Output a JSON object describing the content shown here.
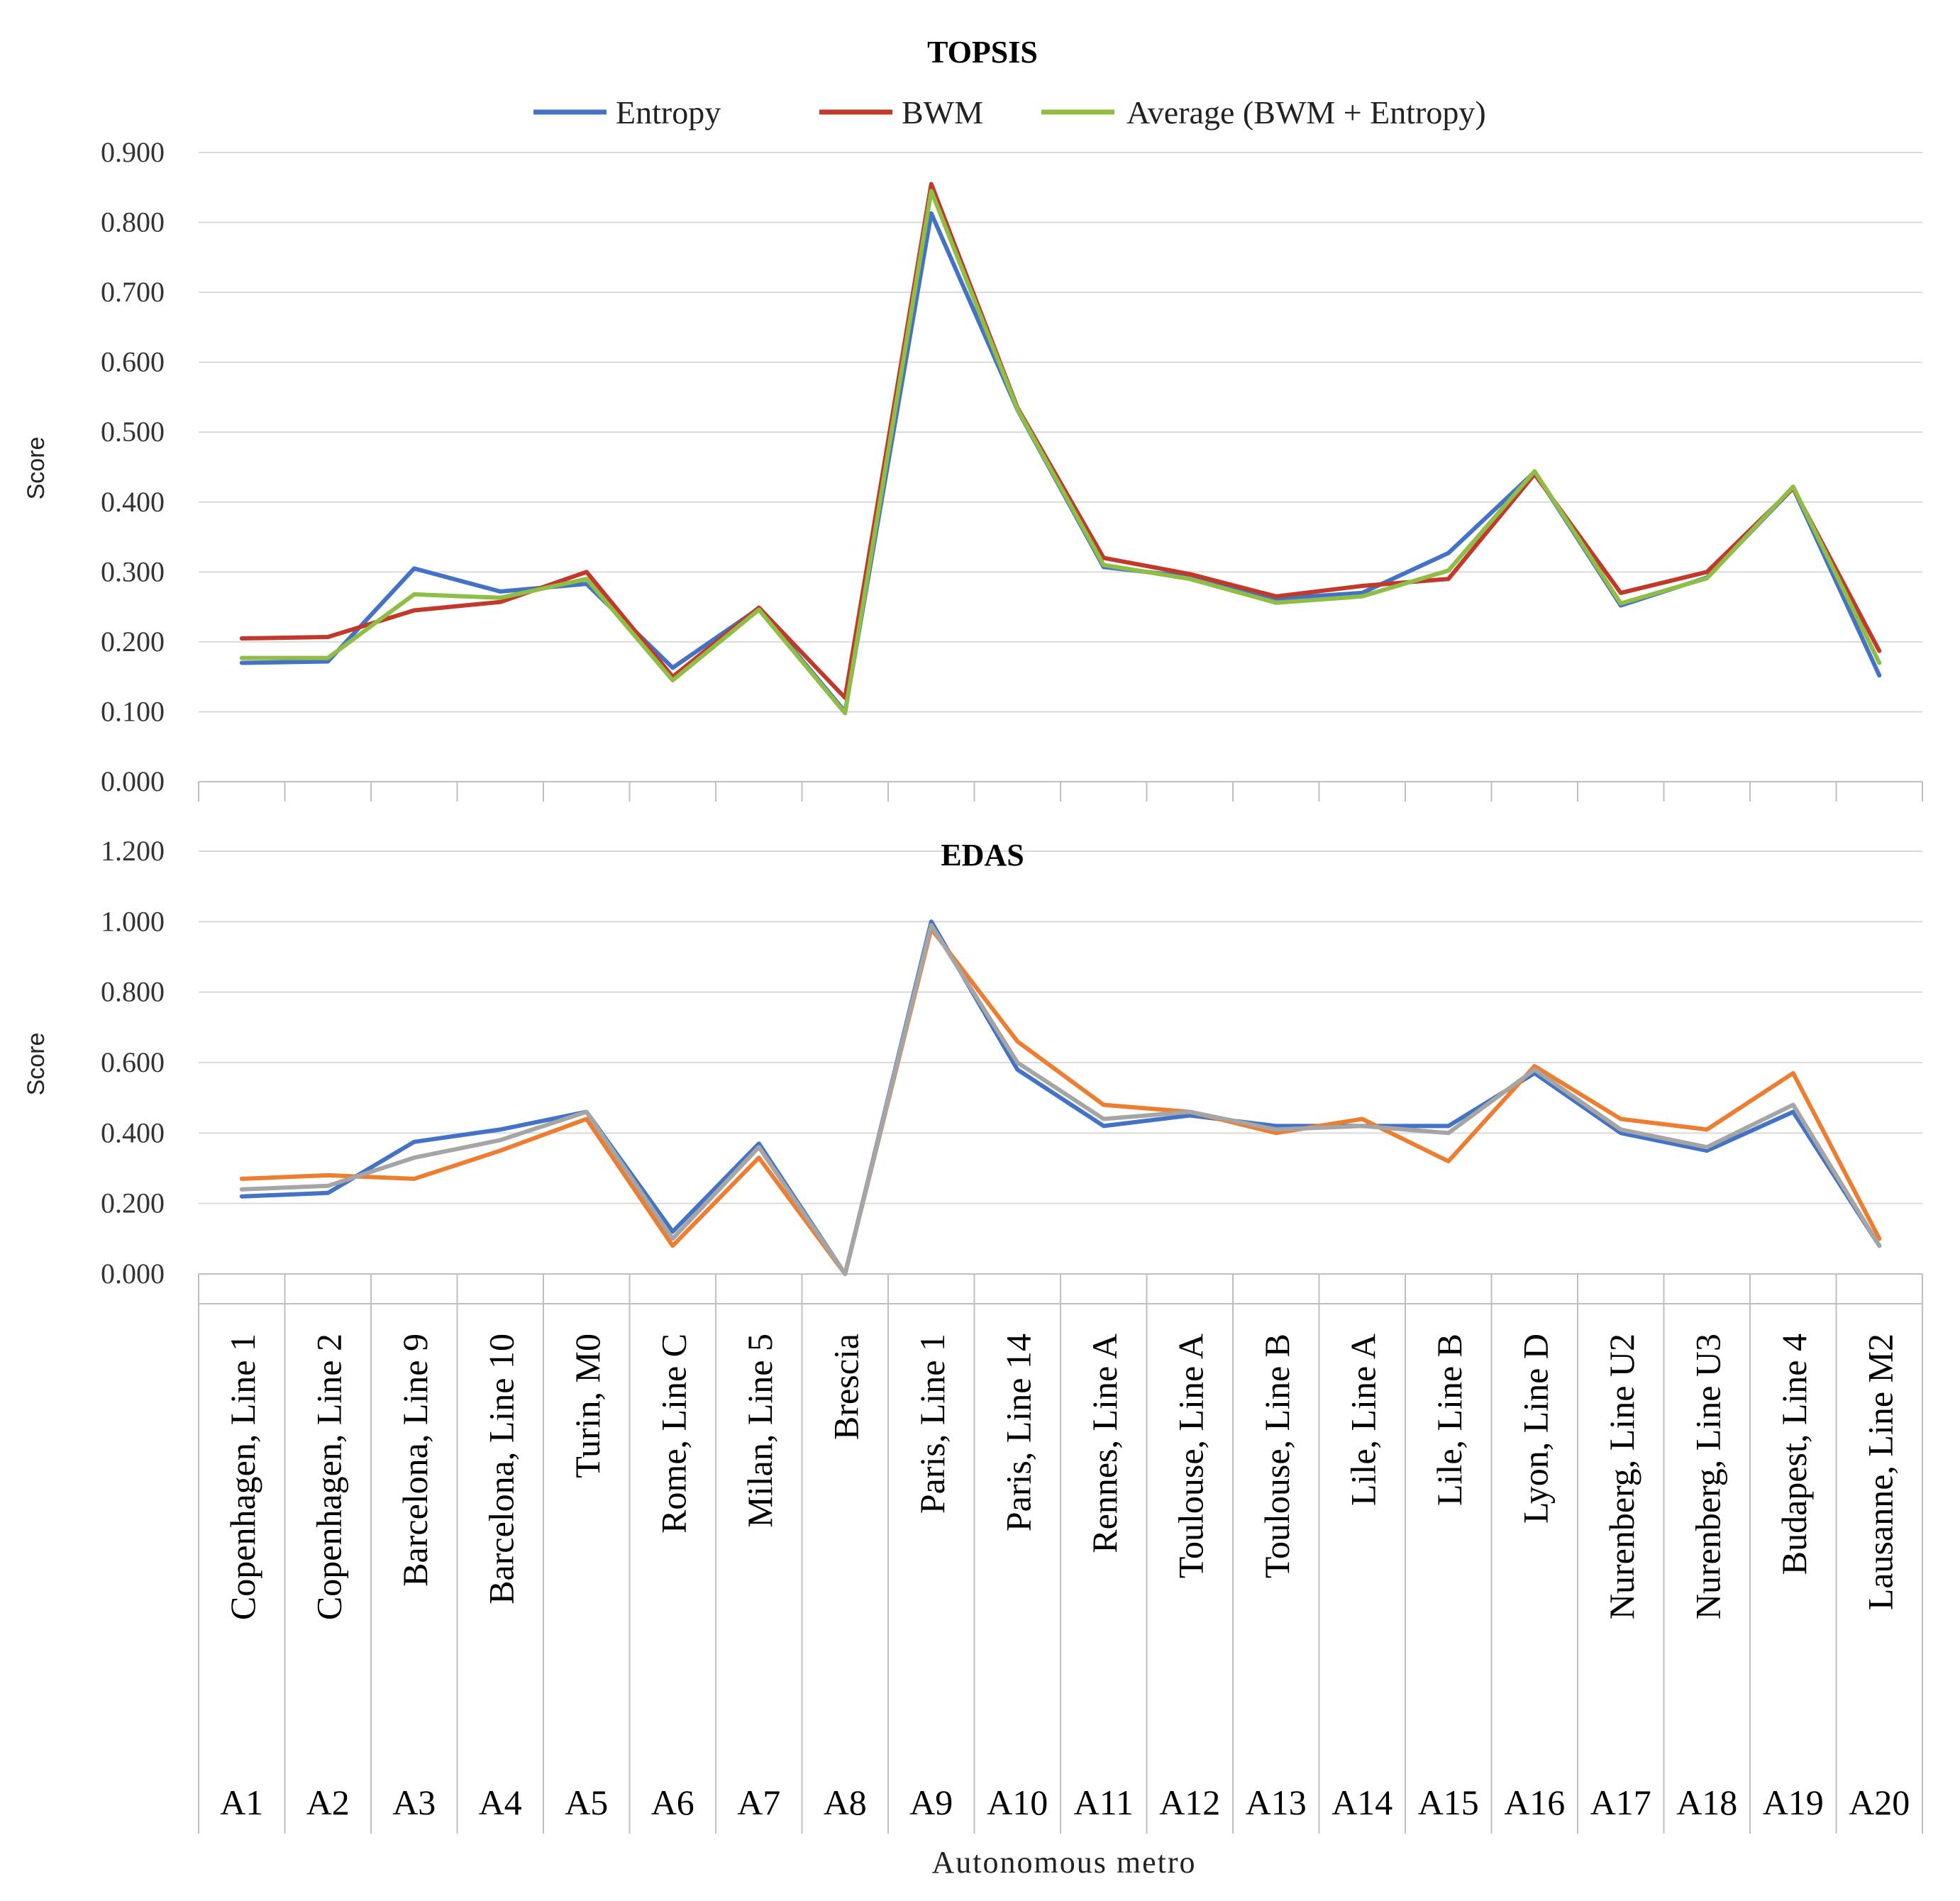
{
  "chart_data": [
    {
      "type": "line",
      "title": "TOPSIS",
      "ylabel": "Score",
      "xlabel": "Autonomous metro",
      "ylim": [
        0,
        0.9
      ],
      "ytick_step": 0.1,
      "ytick_labels": [
        "0.000",
        "0.100",
        "0.200",
        "0.300",
        "0.400",
        "0.500",
        "0.600",
        "0.700",
        "0.800",
        "0.900"
      ],
      "legend_position": "top",
      "categories": [
        "A1",
        "A2",
        "A3",
        "A4",
        "A5",
        "A6",
        "A7",
        "A8",
        "A9",
        "A10",
        "A11",
        "A12",
        "A13",
        "A14",
        "A15",
        "A16",
        "A17",
        "A18",
        "A19",
        "A20"
      ],
      "series": [
        {
          "name": "Entropy",
          "color": "#4472c4",
          "values": [
            0.17,
            0.172,
            0.305,
            0.272,
            0.283,
            0.163,
            0.248,
            0.1,
            0.813,
            0.532,
            0.307,
            0.293,
            0.262,
            0.27,
            0.327,
            0.443,
            0.252,
            0.292,
            0.42,
            0.152
          ]
        },
        {
          "name": "BWM",
          "color": "#c0392b",
          "values": [
            0.205,
            0.207,
            0.245,
            0.257,
            0.3,
            0.15,
            0.249,
            0.12,
            0.855,
            0.535,
            0.32,
            0.297,
            0.265,
            0.28,
            0.29,
            0.44,
            0.27,
            0.3,
            0.42,
            0.187
          ]
        },
        {
          "name": "Average (BWM + Entropy)",
          "color": "#8fbd45",
          "values": [
            0.177,
            0.177,
            0.268,
            0.263,
            0.29,
            0.145,
            0.246,
            0.098,
            0.845,
            0.533,
            0.31,
            0.29,
            0.256,
            0.265,
            0.302,
            0.444,
            0.255,
            0.291,
            0.422,
            0.17
          ]
        }
      ]
    },
    {
      "type": "line",
      "title": "EDAS",
      "ylabel": "Score",
      "xlabel": "Autonomous metro",
      "ylim": [
        0,
        1.2
      ],
      "ytick_step": 0.2,
      "ytick_labels": [
        "0.000",
        "0.200",
        "0.400",
        "0.600",
        "0.800",
        "1.000",
        "1.200"
      ],
      "categories": [
        "A1",
        "A2",
        "A3",
        "A4",
        "A5",
        "A6",
        "A7",
        "A8",
        "A9",
        "A10",
        "A11",
        "A12",
        "A13",
        "A14",
        "A15",
        "A16",
        "A17",
        "A18",
        "A19",
        "A20"
      ],
      "series": [
        {
          "name": "Entropy",
          "color": "#4472c4",
          "values": [
            0.22,
            0.23,
            0.375,
            0.41,
            0.46,
            0.12,
            0.37,
            0.0,
            1.0,
            0.58,
            0.42,
            0.45,
            0.42,
            0.42,
            0.42,
            0.57,
            0.4,
            0.35,
            0.46,
            0.08
          ]
        },
        {
          "name": "BWM",
          "color": "#ed7d31",
          "values": [
            0.27,
            0.28,
            0.27,
            0.35,
            0.44,
            0.08,
            0.33,
            0.0,
            0.98,
            0.66,
            0.48,
            0.46,
            0.4,
            0.44,
            0.32,
            0.59,
            0.44,
            0.41,
            0.57,
            0.1
          ]
        },
        {
          "name": "Average (BWM + Entropy)",
          "color": "#a5a5a5",
          "values": [
            0.24,
            0.25,
            0.33,
            0.38,
            0.46,
            0.1,
            0.36,
            0.0,
            0.99,
            0.6,
            0.44,
            0.46,
            0.41,
            0.42,
            0.4,
            0.58,
            0.41,
            0.36,
            0.48,
            0.08
          ]
        }
      ]
    }
  ],
  "category_names": [
    "Copenhagen, Line 1",
    "Copenhagen, Line 2",
    "Barcelona, Line 9",
    "Barcelona, Line 10",
    "Turin, M0",
    "Rome, Line C",
    "Milan, Line 5",
    "Brescia",
    "Paris, Line 1",
    "Paris, Line 14",
    "Rennes, Line A",
    "Toulouse, Line A",
    "Toulouse, Line B",
    "Lile, Line A",
    "Lile, Line B",
    "Lyon, Line D",
    "Nurenberg, Line U2",
    "Nurenberg, Line U3",
    "Budapest, Line 4",
    "Lausanne, Line M2"
  ],
  "legend": [
    "Entropy",
    "BWM",
    "Average (BWM + Entropy)"
  ],
  "xlabel": "Autonomous metro"
}
